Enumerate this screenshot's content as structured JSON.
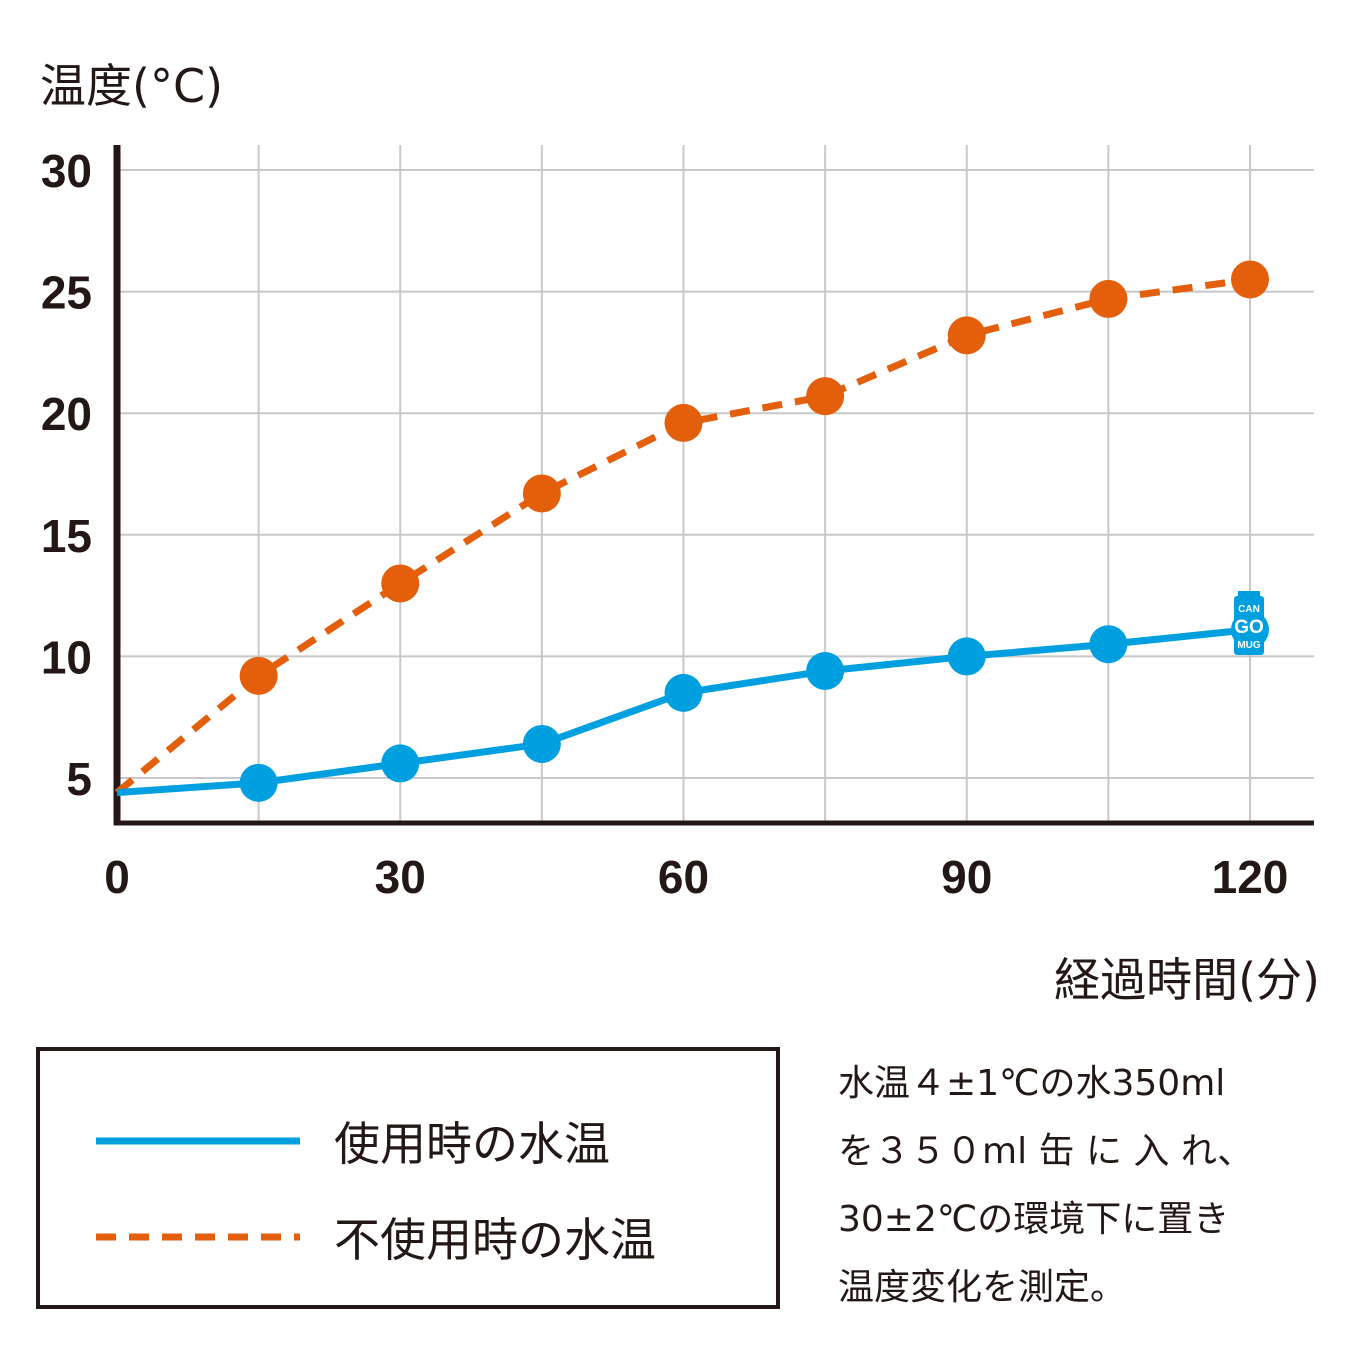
{
  "chart_data": {
    "type": "line",
    "ylabel": "温度(°C)",
    "xlabel": "経過時間(分)",
    "xlim": [
      0,
      125
    ],
    "ylim": [
      3,
      31
    ],
    "x_ticks": [
      "0",
      "30",
      "60",
      "90",
      "120"
    ],
    "y_ticks": [
      "5",
      "10",
      "15",
      "20",
      "25",
      "30"
    ],
    "x_gridlines": [
      15,
      30,
      45,
      60,
      75,
      90,
      105,
      120
    ],
    "y_gridlines": [
      5,
      10,
      15,
      20,
      25,
      30
    ],
    "grid": true,
    "legend_position": "bottom-left",
    "series": [
      {
        "name": "使用時の水温",
        "style": "solid",
        "color": "#00a0e0",
        "x": [
          0,
          15,
          30,
          45,
          60,
          75,
          90,
          105,
          120
        ],
        "y": [
          4.4,
          4.8,
          5.6,
          6.4,
          8.5,
          9.4,
          10.0,
          10.5,
          11.1
        ]
      },
      {
        "name": "不使用時の水温",
        "style": "dashed",
        "color": "#e35f0b",
        "x": [
          0,
          15,
          30,
          45,
          60,
          75,
          90,
          105,
          120
        ],
        "y": [
          4.4,
          9.2,
          13.0,
          16.7,
          19.6,
          20.7,
          23.2,
          24.7,
          25.5
        ]
      }
    ]
  },
  "logo": {
    "line1": "CAN",
    "line2": "GO",
    "line3": "MUG"
  },
  "note": [
    "水温４±1℃の水350ml",
    "を３５０ml 缶 に 入 れ、",
    "30±2℃の環境下に置き",
    "温度変化を測定。"
  ],
  "colors": {
    "axis": "#231815",
    "grid": "#c8c8c8"
  }
}
